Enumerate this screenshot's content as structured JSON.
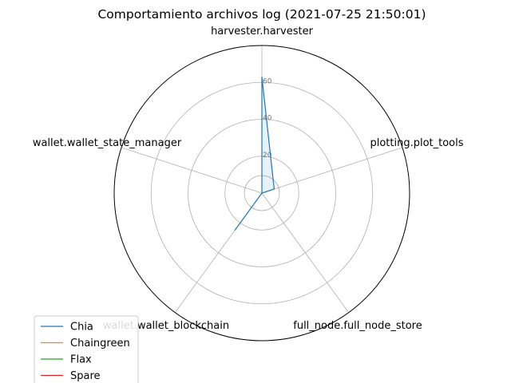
{
  "chart_data": {
    "type": "radar",
    "title": "Comportamiento archivos log (2021-07-25 21:50:01)",
    "axes": [
      "harvester.harvester",
      "plotting.plot_tools",
      "full_node.full_node_store",
      "wallet.wallet_blockchain",
      "wallet.wallet_state_manager"
    ],
    "rlim": [
      0,
      80
    ],
    "rticks": [
      20,
      40,
      60
    ],
    "grid": true,
    "legend_position": "lower-left",
    "series": [
      {
        "name": "Chia",
        "color": "#1f77b4",
        "values": [
          63,
          7,
          0,
          25,
          0
        ]
      },
      {
        "name": "Chaingreen",
        "color": "#ff7f0e",
        "values": [
          0,
          0,
          0,
          0,
          0
        ]
      },
      {
        "name": "Flax",
        "color": "#2ca02c",
        "values": [
          0,
          0,
          0,
          0,
          0
        ]
      },
      {
        "name": "Spare",
        "color": "#d62728",
        "values": [
          0,
          0,
          0,
          0,
          0
        ]
      }
    ]
  }
}
